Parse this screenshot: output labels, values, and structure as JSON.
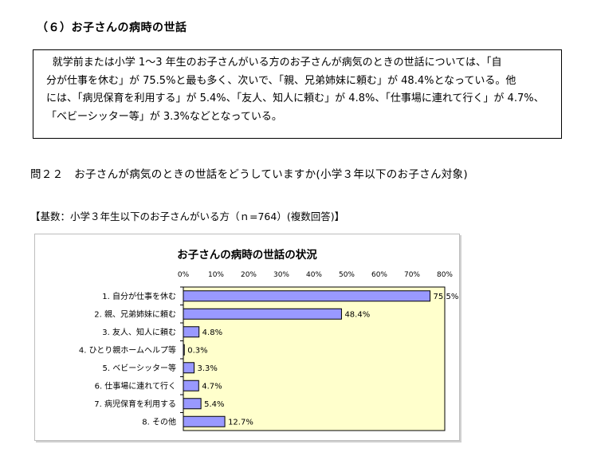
{
  "section": {
    "title": "（６）お子さんの病時の世話"
  },
  "summary": {
    "lines": [
      "就学前または小学 1～3 年生のお子さんがいる方のお子さんが病気のときの世話については、「自",
      "分が仕事を休む」が 75.5%と最も多く、次いで、「親、兄弟姉妹に頼む」が 48.4%となっている。他",
      "には、「病児保育を利用する」が 5.4%、「友人、知人に頼む」が 4.8%、「仕事場に連れて行く」が 4.7%、",
      "「ベビーシッター等」が 3.3%などとなっている。"
    ]
  },
  "question": "問２２　お子さんが病気のときの世話をどうしていますか(小学３年以下のお子さん対象)",
  "base_note": "【基数：小学３年生以下のお子さんがいる方（ｎ=764）(複数回答)】",
  "chart_data": {
    "type": "bar",
    "orientation": "horizontal",
    "title": "お子さんの病時の世話の状況",
    "categories": [
      "1. 自分が仕事を休む",
      "2. 親、兄弟姉妹に頼む",
      "3. 友人、知人に頼む",
      "4. ひとり親ホームヘルプ等",
      "5. ベビーシッター等",
      "6. 仕事場に連れて行く",
      "7. 病児保育を利用する",
      "8. その他"
    ],
    "values": [
      75.5,
      48.4,
      4.8,
      0.3,
      3.3,
      4.7,
      5.4,
      12.7
    ],
    "value_labels": [
      "75.5%",
      "48.4%",
      "4.8%",
      "0.3%",
      "3.3%",
      "4.7%",
      "5.4%",
      "12.7%"
    ],
    "xlim": [
      0,
      80
    ],
    "xticks": [
      "0%",
      "10%",
      "20%",
      "30%",
      "40%",
      "50%",
      "60%",
      "70%",
      "80%"
    ],
    "grid": false,
    "colors": {
      "bar": "#9999ff",
      "bar_border": "#000000",
      "plot_bg": "#ffffcc"
    }
  }
}
